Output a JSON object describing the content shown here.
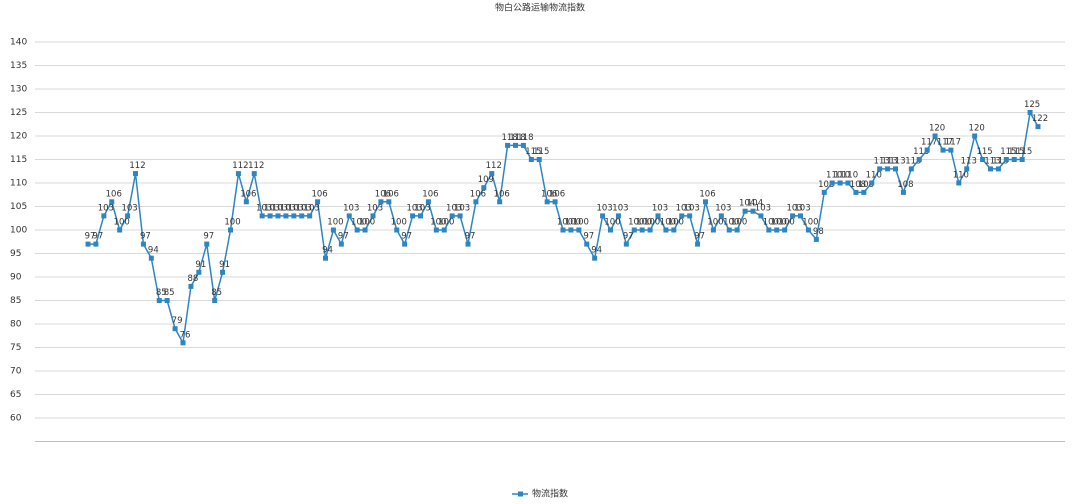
{
  "chart_data": {
    "type": "line",
    "title": "物白公路运输物流指数",
    "categories": [
      null,
      null,
      null,
      null,
      null,
      null,
      null,
      null,
      null,
      null,
      null,
      null,
      null,
      null,
      null,
      null,
      null,
      null,
      null,
      null,
      null,
      null,
      null,
      null,
      null,
      null,
      null,
      null,
      null,
      null,
      null,
      null,
      null,
      null,
      null,
      null,
      null,
      null,
      null,
      null,
      null,
      null,
      null,
      null,
      null,
      null,
      null,
      null,
      null,
      null,
      null,
      null,
      null,
      null,
      null,
      null,
      null,
      null,
      null,
      null,
      null,
      null,
      null,
      null,
      null,
      null,
      null,
      null,
      null,
      null,
      null,
      null,
      null,
      null,
      null,
      null,
      null,
      null,
      null,
      null,
      null,
      null,
      null,
      null,
      null,
      null,
      null,
      null,
      null,
      null,
      null,
      null,
      null,
      null,
      null,
      null,
      null,
      null,
      null,
      null,
      null,
      null,
      null,
      null,
      null,
      null,
      null,
      null,
      null,
      null,
      null,
      null,
      null,
      null,
      null,
      null,
      null,
      null,
      null,
      null,
      null
    ],
    "series": [
      {
        "name": "物流指数",
        "color": "#2e86c1",
        "values": [
          97,
          97,
          103,
          106,
          100,
          103,
          112,
          97,
          94,
          85,
          85,
          79,
          76,
          88,
          91,
          97,
          85,
          91,
          100,
          112,
          106,
          112,
          103,
          103,
          103,
          103,
          103,
          103,
          103,
          106,
          94,
          100,
          97,
          103,
          100,
          100,
          103,
          106,
          106,
          100,
          97,
          103,
          103,
          106,
          100,
          100,
          103,
          103,
          97,
          106,
          109,
          112,
          106,
          118,
          118,
          118,
          115,
          115,
          106,
          106,
          100,
          100,
          100,
          97,
          94,
          103,
          100,
          103,
          97,
          100,
          100,
          100,
          103,
          100,
          100,
          103,
          103,
          97,
          106,
          100,
          103,
          100,
          100,
          104,
          104,
          103,
          100,
          100,
          100,
          103,
          103,
          100,
          98,
          108,
          110,
          110,
          110,
          108,
          108,
          110,
          113,
          113,
          113,
          108,
          113,
          115,
          117,
          120,
          117,
          117,
          110,
          113,
          120,
          115,
          113,
          113,
          115,
          115,
          115,
          125,
          122
        ]
      }
    ],
    "ylim": [
      55,
      140
    ],
    "yticks": [
      60,
      65,
      70,
      75,
      80,
      85,
      90,
      95,
      100,
      105,
      110,
      115,
      120,
      125,
      130,
      135,
      140
    ],
    "grid": true,
    "legend": "bottom"
  }
}
